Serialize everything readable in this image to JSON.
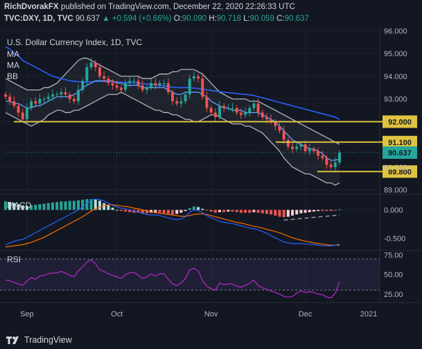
{
  "header": {
    "author": "RichDvorakFX",
    "published": "published on TradingView.com, December 22, 2020 22:26:33 UTC",
    "symbol": "TVC:DXY, 1D, TVC",
    "last": "90.637",
    "change": "▲ +0.594 (+0.66%)",
    "o_label": "O:",
    "o_value": "90.090",
    "h_label": "H:",
    "h_value": "90.718",
    "l_label": "L:",
    "l_value": "90.059",
    "c_label": "C:",
    "c_value": "90.637"
  },
  "footer": {
    "brand": "TradingView"
  },
  "colors": {
    "background": "#131722",
    "up": "#26a69a",
    "down": "#ef5350",
    "ma_fast": "#5b9cf6",
    "ma_slow": "#2962ff",
    "bb": "#b2b5be",
    "support": "#e0c341",
    "macd_line": "#2962ff",
    "signal_line": "#ff6d00",
    "rsi": "#9c27b0"
  },
  "chart_data": [
    {
      "type": "candlestick",
      "title": "U.S. Dollar Currency Index, 1D, TVC",
      "indicator_labels": [
        "MA",
        "MA",
        "BB"
      ],
      "x_ticks": [
        "Sep",
        "Oct",
        "Nov",
        "Dec",
        "2021"
      ],
      "y_ticks": [
        "89.000",
        "90.000",
        "91.000",
        "92.000",
        "93.000",
        "94.000",
        "95.000",
        "96.000"
      ],
      "ylim": [
        88.8,
        96.2
      ],
      "levels": [
        {
          "label": "92.000",
          "value": 92.0
        },
        {
          "label": "91.100",
          "value": 91.1
        },
        {
          "label": "89.800",
          "value": 89.8
        }
      ],
      "last_price": {
        "label": "90.637",
        "value": 90.637
      },
      "close": [
        93.1,
        92.9,
        92.7,
        92.4,
        92.1,
        92.6,
        92.9,
        92.8,
        93.0,
        93.0,
        93.1,
        93.2,
        93.2,
        93.3,
        93.2,
        93.0,
        92.9,
        93.4,
        93.8,
        94.4,
        94.6,
        94.4,
        94.0,
        93.9,
        93.7,
        93.6,
        93.5,
        93.4,
        93.7,
        93.8,
        93.8,
        93.6,
        93.4,
        93.5,
        93.7,
        93.6,
        93.7,
        93.7,
        93.3,
        92.9,
        92.8,
        92.9,
        93.2,
        93.9,
        94.0,
        93.9,
        93.1,
        92.6,
        92.4,
        92.2,
        92.7,
        92.6,
        92.6,
        92.6,
        92.4,
        92.3,
        92.4,
        92.6,
        92.8,
        92.4,
        92.2,
        92.1,
        92.0,
        91.8,
        91.6,
        91.2,
        90.9,
        90.8,
        90.9,
        91.0,
        90.7,
        90.8,
        90.7,
        90.5,
        90.4,
        90.1,
        90.0,
        90.2,
        90.637
      ],
      "ma_fast": [
        92.9,
        92.9,
        92.8,
        92.8,
        92.7,
        92.6,
        92.6,
        92.7,
        92.7,
        92.8,
        92.9,
        93.0,
        93.1,
        93.1,
        93.1,
        93.1,
        93.2,
        93.3,
        93.5,
        93.6,
        93.7,
        93.8,
        93.8,
        93.8,
        93.8,
        93.8,
        93.7,
        93.7,
        93.6,
        93.6,
        93.6,
        93.6,
        93.5,
        93.5,
        93.5,
        93.5,
        93.5,
        93.5,
        93.4,
        93.3,
        93.2,
        93.2,
        93.3,
        93.3,
        93.3,
        93.3,
        93.2,
        93.1,
        92.9,
        92.8,
        92.7,
        92.6,
        92.6,
        92.5,
        92.5,
        92.5,
        92.4,
        92.4,
        92.4,
        92.4,
        92.3,
        92.2,
        92.1,
        92.0,
        91.8,
        91.6,
        91.4,
        91.2,
        91.1,
        91.0,
        90.9,
        90.8,
        90.8,
        90.7,
        90.6,
        90.4,
        90.3,
        90.3,
        90.35
      ],
      "ma_slow": [
        95.3,
        95.2,
        95.0,
        94.9,
        94.7,
        94.6,
        94.5,
        94.4,
        94.3,
        94.2,
        94.1,
        94.0,
        93.95,
        93.9,
        93.85,
        93.8,
        93.78,
        93.76,
        93.75,
        93.75,
        93.76,
        93.77,
        93.78,
        93.78,
        93.77,
        93.76,
        93.75,
        93.74,
        93.73,
        93.72,
        93.71,
        93.7,
        93.68,
        93.66,
        93.64,
        93.62,
        93.6,
        93.58,
        93.55,
        93.52,
        93.5,
        93.5,
        93.5,
        93.5,
        93.48,
        93.46,
        93.43,
        93.4,
        93.38,
        93.35,
        93.32,
        93.3,
        93.28,
        93.26,
        93.24,
        93.22,
        93.2,
        93.18,
        93.15,
        93.1,
        93.05,
        93.0,
        92.95,
        92.9,
        92.85,
        92.8,
        92.75,
        92.7,
        92.65,
        92.6,
        92.55,
        92.5,
        92.45,
        92.4,
        92.35,
        92.3,
        92.25,
        92.2,
        92.1
      ],
      "bb_upper": [
        93.9,
        93.8,
        93.7,
        93.6,
        93.5,
        93.4,
        93.4,
        93.4,
        93.4,
        93.5,
        93.5,
        93.6,
        93.7,
        93.9,
        94.1,
        94.3,
        94.5,
        94.7,
        94.8,
        94.8,
        94.7,
        94.6,
        94.5,
        94.4,
        94.3,
        94.2,
        94.1,
        94.0,
        94.0,
        94.0,
        94.0,
        94.0,
        93.9,
        93.9,
        93.9,
        94.0,
        94.1,
        94.1,
        94.1,
        94.2,
        94.2,
        94.3,
        94.3,
        94.3,
        94.3,
        94.2,
        94.1,
        93.9,
        93.7,
        93.5,
        93.3,
        93.2,
        93.1,
        93.0,
        93.0,
        93.0,
        93.0,
        92.9,
        92.9,
        92.9,
        92.8,
        92.7,
        92.6,
        92.5,
        92.4,
        92.3,
        92.2,
        92.1,
        92.0,
        91.9,
        91.8,
        91.7,
        91.6,
        91.5,
        91.4,
        91.3,
        91.2,
        91.1,
        91.0
      ],
      "bb_lower": [
        92.4,
        92.3,
        92.2,
        92.1,
        92.0,
        91.9,
        91.8,
        91.9,
        92.0,
        92.1,
        92.3,
        92.4,
        92.5,
        92.5,
        92.4,
        92.4,
        92.5,
        92.5,
        92.6,
        92.7,
        92.8,
        92.9,
        93.0,
        93.1,
        93.2,
        93.2,
        93.2,
        93.3,
        93.2,
        93.1,
        93.0,
        92.9,
        92.8,
        92.7,
        92.6,
        92.5,
        92.5,
        92.4,
        92.4,
        92.3,
        92.3,
        92.2,
        92.1,
        92.1,
        92.0,
        92.0,
        92.1,
        92.2,
        92.3,
        92.3,
        92.2,
        92.1,
        92.0,
        91.9,
        91.9,
        91.9,
        91.8,
        91.8,
        91.7,
        91.6,
        91.5,
        91.3,
        91.1,
        90.9,
        90.7,
        90.4,
        90.2,
        90.0,
        89.9,
        89.8,
        89.7,
        89.7,
        89.6,
        89.5,
        89.4,
        89.3,
        89.3,
        89.2,
        89.3
      ]
    },
    {
      "type": "macd",
      "title": "MACD",
      "y_ticks": [
        "0.000",
        "-0.500"
      ],
      "ylim": [
        -0.7,
        0.25
      ],
      "histogram": [
        0.15,
        0.14,
        0.12,
        0.1,
        0.08,
        0.07,
        0.08,
        0.09,
        0.1,
        0.11,
        0.12,
        0.13,
        0.14,
        0.15,
        0.15,
        0.16,
        0.16,
        0.17,
        0.18,
        0.19,
        0.19,
        0.18,
        0.16,
        0.12,
        0.08,
        0.04,
        0.0,
        -0.02,
        -0.03,
        -0.04,
        -0.05,
        -0.05,
        -0.06,
        -0.06,
        -0.05,
        -0.04,
        -0.05,
        -0.06,
        -0.07,
        -0.08,
        -0.07,
        -0.05,
        -0.02,
        0.03,
        0.06,
        0.05,
        0.02,
        -0.01,
        -0.03,
        -0.05,
        -0.04,
        -0.04,
        -0.03,
        -0.03,
        -0.04,
        -0.05,
        -0.05,
        -0.05,
        -0.04,
        -0.05,
        -0.06,
        -0.07,
        -0.08,
        -0.1,
        -0.12,
        -0.13,
        -0.12,
        -0.1,
        -0.08,
        -0.06,
        -0.05,
        -0.04,
        -0.03,
        -0.02,
        -0.02,
        -0.02,
        -0.01,
        -0.01,
        0.01
      ],
      "macd": [
        -0.62,
        -0.58,
        -0.55,
        -0.53,
        -0.52,
        -0.48,
        -0.44,
        -0.4,
        -0.36,
        -0.32,
        -0.28,
        -0.24,
        -0.2,
        -0.16,
        -0.12,
        -0.08,
        -0.04,
        0.0,
        0.05,
        0.12,
        0.17,
        0.19,
        0.18,
        0.16,
        0.12,
        0.08,
        0.05,
        0.03,
        0.02,
        0.0,
        -0.02,
        -0.04,
        -0.06,
        -0.08,
        -0.09,
        -0.09,
        -0.1,
        -0.12,
        -0.14,
        -0.16,
        -0.17,
        -0.16,
        -0.12,
        -0.04,
        0.0,
        -0.01,
        -0.05,
        -0.1,
        -0.14,
        -0.17,
        -0.2,
        -0.22,
        -0.23,
        -0.24,
        -0.26,
        -0.28,
        -0.3,
        -0.32,
        -0.33,
        -0.35,
        -0.38,
        -0.41,
        -0.45,
        -0.49,
        -0.53,
        -0.56,
        -0.58,
        -0.59,
        -0.59,
        -0.59,
        -0.6,
        -0.6,
        -0.61,
        -0.62,
        -0.63,
        -0.63,
        -0.63,
        -0.62,
        -0.6
      ],
      "signal": [
        -0.65,
        -0.64,
        -0.63,
        -0.62,
        -0.61,
        -0.59,
        -0.57,
        -0.54,
        -0.51,
        -0.48,
        -0.44,
        -0.4,
        -0.36,
        -0.32,
        -0.28,
        -0.24,
        -0.2,
        -0.16,
        -0.12,
        -0.07,
        -0.02,
        0.02,
        0.05,
        0.08,
        0.09,
        0.09,
        0.08,
        0.07,
        0.06,
        0.05,
        0.03,
        0.02,
        0.0,
        -0.02,
        -0.04,
        -0.05,
        -0.06,
        -0.07,
        -0.08,
        -0.09,
        -0.1,
        -0.11,
        -0.11,
        -0.1,
        -0.08,
        -0.07,
        -0.07,
        -0.08,
        -0.1,
        -0.12,
        -0.14,
        -0.16,
        -0.18,
        -0.2,
        -0.22,
        -0.23,
        -0.25,
        -0.27,
        -0.29,
        -0.3,
        -0.32,
        -0.34,
        -0.36,
        -0.38,
        -0.4,
        -0.43,
        -0.46,
        -0.49,
        -0.51,
        -0.53,
        -0.55,
        -0.56,
        -0.58,
        -0.59,
        -0.6,
        -0.61,
        -0.62,
        -0.62,
        -0.62
      ]
    },
    {
      "type": "line",
      "title": "RSI",
      "y_ticks": [
        "75.00",
        "50.00",
        "25.00"
      ],
      "ylim": [
        15,
        80
      ],
      "bands": [
        30,
        70
      ],
      "values": [
        43,
        42,
        40,
        38,
        36,
        42,
        46,
        44,
        48,
        49,
        51,
        52,
        52,
        54,
        52,
        49,
        47,
        55,
        60,
        66,
        69,
        64,
        56,
        54,
        51,
        49,
        47,
        45,
        50,
        52,
        53,
        49,
        45,
        47,
        51,
        48,
        51,
        51,
        44,
        38,
        36,
        39,
        45,
        56,
        58,
        55,
        42,
        35,
        32,
        30,
        39,
        37,
        38,
        38,
        35,
        34,
        36,
        39,
        43,
        36,
        33,
        31,
        29,
        27,
        25,
        22,
        21,
        22,
        26,
        29,
        27,
        28,
        27,
        25,
        24,
        21,
        20,
        26,
        41
      ]
    }
  ]
}
